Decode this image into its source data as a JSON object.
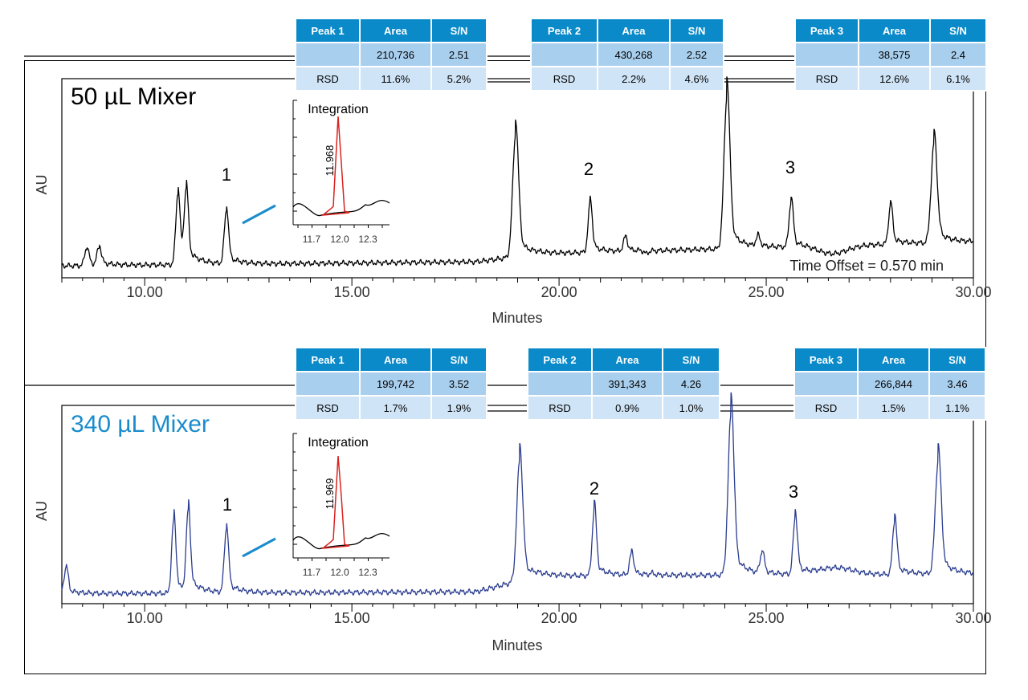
{
  "panels": [
    {
      "title": "50 µL Mixer",
      "title_color": "#000000",
      "trace_color": "#000000",
      "ylabel": "AU",
      "xlabel": "Minutes",
      "offset_note": "Time Offset = 0.570 min",
      "tables": [
        {
          "header": [
            "Peak 1",
            "Area",
            "S/N"
          ],
          "row1": [
            "",
            "210,736",
            "2.51"
          ],
          "row2": [
            "RSD",
            "11.6%",
            "5.2%"
          ]
        },
        {
          "header": [
            "Peak 2",
            "Area",
            "S/N"
          ],
          "row1": [
            "",
            "430,268",
            "2.52"
          ],
          "row2": [
            "RSD",
            "2.2%",
            "4.6%"
          ]
        },
        {
          "header": [
            "Peak 3",
            "Area",
            "S/N"
          ],
          "row1": [
            "",
            "38,575",
            "2.4"
          ],
          "row2": [
            "RSD",
            "12.6%",
            "6.1%"
          ]
        }
      ],
      "peak_labels": [
        "1",
        "2",
        "3"
      ],
      "inset": {
        "title": "Integration",
        "peak_label": "11.968",
        "ticks": [
          "11.7",
          "12.0",
          "12.3"
        ]
      }
    },
    {
      "title": "340 µL Mixer",
      "title_color": "#1a8ccc",
      "trace_color": "#2b3d8f",
      "ylabel": "AU",
      "xlabel": "Minutes",
      "tables": [
        {
          "header": [
            "Peak 1",
            "Area",
            "S/N"
          ],
          "row1": [
            "",
            "199,742",
            "3.52"
          ],
          "row2": [
            "RSD",
            "1.7%",
            "1.9%"
          ]
        },
        {
          "header": [
            "Peak 2",
            "Area",
            "S/N"
          ],
          "row1": [
            "",
            "391,343",
            "4.26"
          ],
          "row2": [
            "RSD",
            "0.9%",
            "1.0%"
          ]
        },
        {
          "header": [
            "Peak 3",
            "Area",
            "S/N"
          ],
          "row1": [
            "",
            "266,844",
            "3.46"
          ],
          "row2": [
            "RSD",
            "1.5%",
            "1.1%"
          ]
        }
      ],
      "peak_labels": [
        "1",
        "2",
        "3"
      ],
      "inset": {
        "title": "Integration",
        "peak_label": "11.969",
        "ticks": [
          "11.7",
          "12.0",
          "12.3"
        ]
      }
    }
  ],
  "chart_data": [
    {
      "type": "line",
      "title": "50 µL Mixer",
      "xlabel": "Minutes",
      "ylabel": "AU",
      "xlim": [
        8,
        30
      ],
      "x_ticks": [
        "10.00",
        "15.00",
        "20.00",
        "25.00",
        "30.00"
      ],
      "grid": false,
      "peaks": [
        {
          "x": 8.6,
          "y": 0.15
        },
        {
          "x": 8.9,
          "y": 0.15
        },
        {
          "x": 10.8,
          "y": 0.42
        },
        {
          "x": 11.0,
          "y": 0.42
        },
        {
          "x": 11.97,
          "y": 0.33,
          "label": "1"
        },
        {
          "x": 18.95,
          "y": 0.71
        },
        {
          "x": 20.75,
          "y": 0.37,
          "label": "2"
        },
        {
          "x": 21.6,
          "y": 0.2
        },
        {
          "x": 22.1,
          "y": 0.12
        },
        {
          "x": 24.05,
          "y": 0.9
        },
        {
          "x": 24.8,
          "y": 0.2
        },
        {
          "x": 25.6,
          "y": 0.38,
          "label": "3"
        },
        {
          "x": 26.6,
          "y": 0.12,
          "w": 0.35
        },
        {
          "x": 28.0,
          "y": 0.36
        },
        {
          "x": 29.05,
          "y": 0.67
        }
      ],
      "baseline": [
        [
          8,
          0.06
        ],
        [
          18,
          0.08
        ],
        [
          19.5,
          0.12
        ],
        [
          30,
          0.18
        ]
      ]
    },
    {
      "type": "line",
      "title": "340 µL Mixer",
      "xlabel": "Minutes",
      "ylabel": "AU",
      "xlim": [
        8,
        30
      ],
      "x_ticks": [
        "10.00",
        "15.00",
        "20.00",
        "25.00",
        "30.00"
      ],
      "grid": false,
      "peaks": [
        {
          "x": 8.1,
          "y": 0.18
        },
        {
          "x": 10.7,
          "y": 0.42
        },
        {
          "x": 11.05,
          "y": 0.45
        },
        {
          "x": 11.97,
          "y": 0.37,
          "label": "1"
        },
        {
          "x": 19.05,
          "y": 0.72
        },
        {
          "x": 20.85,
          "y": 0.47,
          "label": "2"
        },
        {
          "x": 21.75,
          "y": 0.25
        },
        {
          "x": 22.25,
          "y": 0.15
        },
        {
          "x": 24.15,
          "y": 0.95
        },
        {
          "x": 24.9,
          "y": 0.25
        },
        {
          "x": 25.7,
          "y": 0.43,
          "label": "3"
        },
        {
          "x": 26.7,
          "y": 0.18,
          "w": 0.4
        },
        {
          "x": 28.1,
          "y": 0.42
        },
        {
          "x": 29.15,
          "y": 0.72
        }
      ],
      "baseline": [
        [
          8,
          0.05
        ],
        [
          18,
          0.06
        ],
        [
          19.5,
          0.14
        ],
        [
          30,
          0.15
        ]
      ]
    }
  ]
}
